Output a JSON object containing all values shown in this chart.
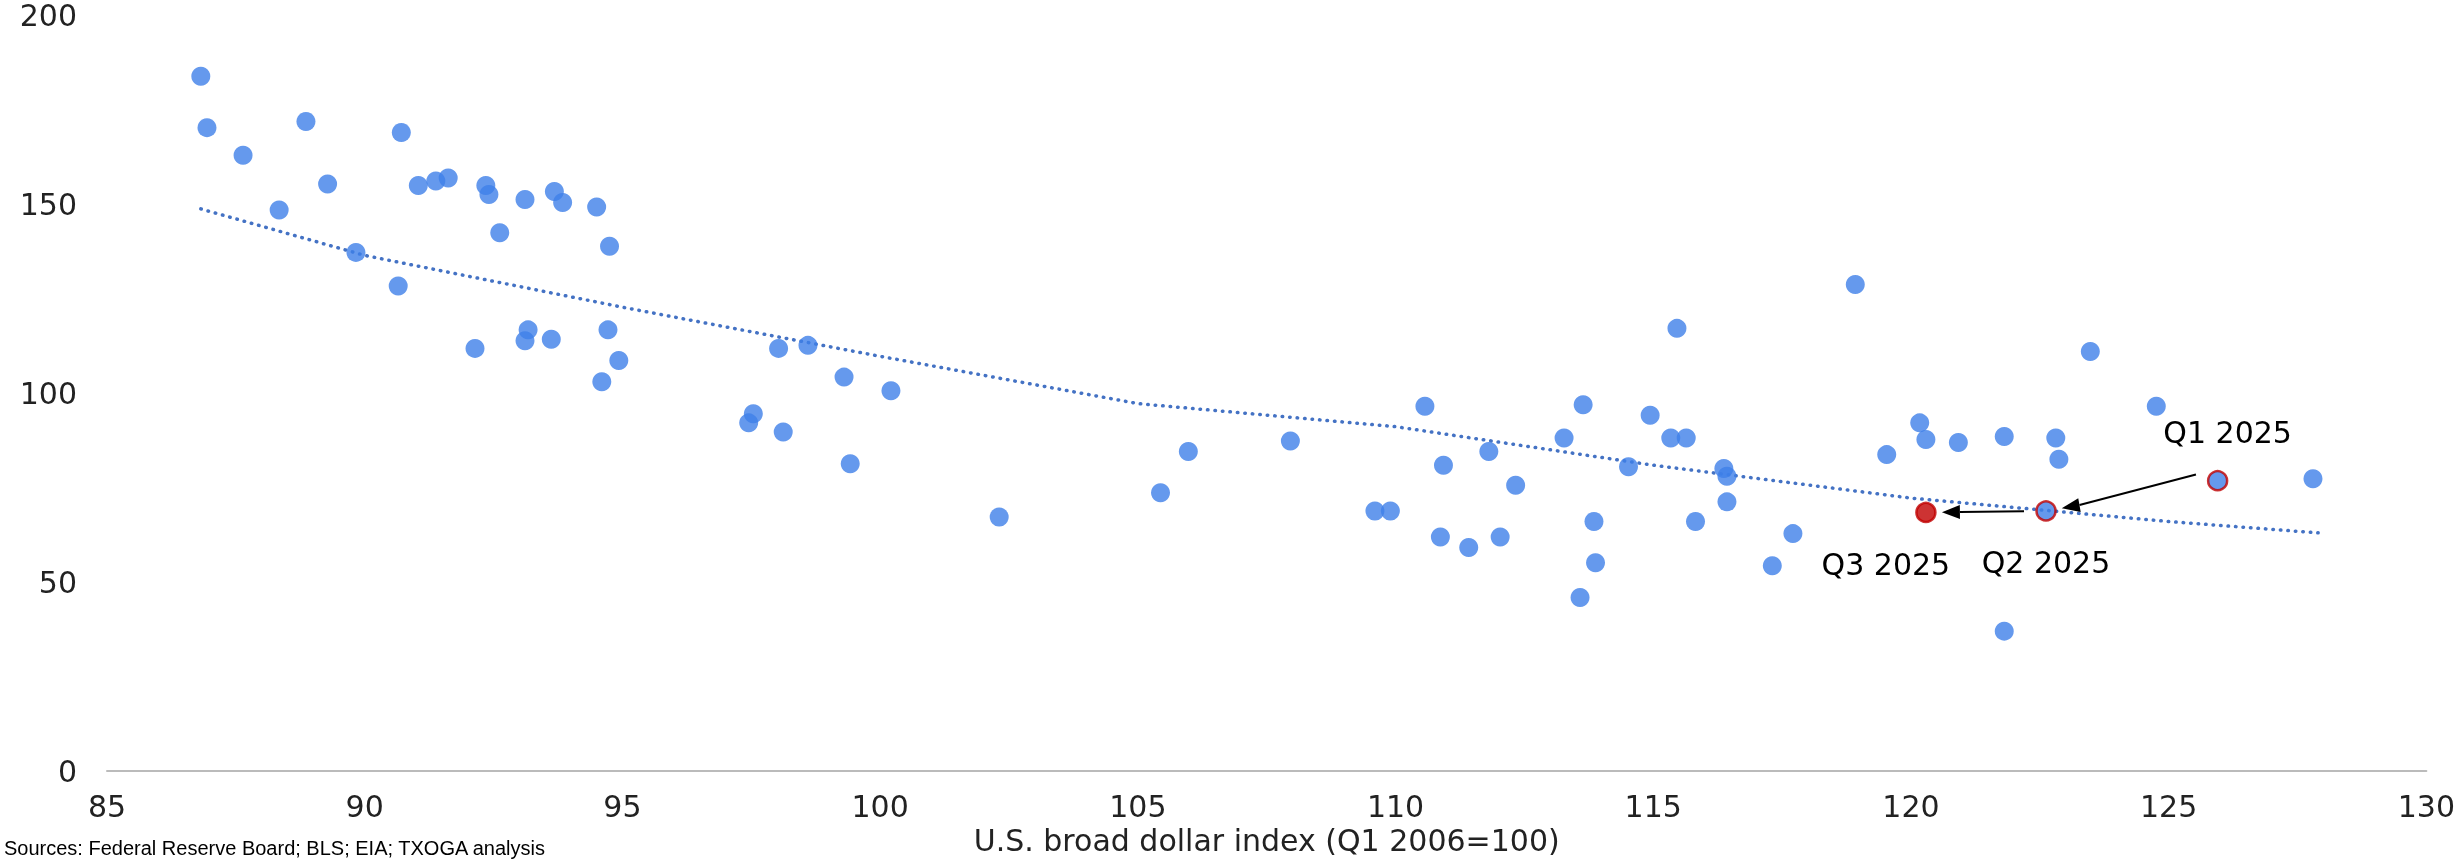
{
  "chart_data": {
    "type": "scatter",
    "xlabel": "U.S. broad dollar index (Q1 2006=100)",
    "xlim": [
      85,
      130
    ],
    "xticks": [
      85,
      90,
      95,
      100,
      105,
      110,
      115,
      120,
      125,
      130
    ],
    "ylim": [
      0,
      200
    ],
    "yticks": [
      0,
      50,
      100,
      150,
      200
    ],
    "grid": false,
    "marker": "circle",
    "series": [
      {
        "color": "#3f7fe8",
        "x": [
          86.82,
          86.94,
          87.64,
          88.34,
          88.86,
          89.28,
          89.83,
          90.65,
          90.71,
          91.04,
          91.38,
          91.62,
          92.35,
          92.41,
          92.62,
          92.14,
          93.11,
          93.11,
          93.17,
          93.62,
          93.68,
          93.84,
          94.5,
          94.75,
          94.72,
          94.6,
          94.93,
          97.45,
          97.54,
          98.03,
          98.12,
          98.6,
          99.3,
          99.42,
          100.21,
          102.31,
          105.44,
          105.98,
          107.96,
          109.6,
          109.9,
          110.57,
          110.87,
          110.93,
          111.42,
          111.81,
          112.03,
          112.33,
          113.27,
          113.58,
          113.64,
          113.85,
          113.88,
          114.52,
          114.94,
          115.34,
          115.46,
          115.64,
          115.82,
          116.37,
          116.43,
          116.43,
          117.31,
          117.71,
          118.92,
          119.53,
          120.17,
          120.29,
          120.92,
          121.81,
          121.81,
          122.81,
          122.87,
          123.48,
          124.76,
          127.8
        ],
        "values": [
          183.8,
          170.2,
          162.9,
          148.4,
          171.8,
          155.3,
          137.2,
          128.3,
          168.9,
          154.9,
          156.1,
          156.9,
          154.9,
          152.5,
          142.4,
          111.8,
          151.2,
          113.8,
          116.7,
          114.2,
          153.3,
          150.4,
          149.2,
          138.8,
          116.7,
          103,
          108.6,
          92.1,
          94.5,
          111.8,
          89.7,
          112.6,
          104.2,
          81.3,
          100.6,
          67.2,
          73.6,
          84.5,
          87.3,
          68.8,
          68.8,
          96.5,
          61.9,
          80.9,
          59.1,
          84.5,
          61.9,
          75.6,
          88.1,
          45.9,
          96.9,
          66,
          55.1,
          80.5,
          94.1,
          88.1,
          117.1,
          88.1,
          66,
          80,
          78,
          71.2,
          54.3,
          62.8,
          128.7,
          83.7,
          92.1,
          87.7,
          86.9,
          88.5,
          37,
          88.1,
          82.5,
          111,
          96.5,
          77.3
        ]
      },
      {
        "x": [
          125.95,
          122.62,
          120.29
        ],
        "values": [
          76.8,
          68.8,
          68.4
        ],
        "colors": [
          "#3f7fe8",
          "#3f7fe8",
          "#c00000"
        ]
      },
      {
        "type": "line",
        "color": "#4472c4",
        "line_style": "dotted",
        "marker": "none",
        "x": [
          86.82,
          90,
          95,
          100,
          105,
          110,
          115,
          120,
          125,
          127.9
        ],
        "values": [
          148.7,
          136.4,
          122.7,
          109.7,
          97.2,
          91.1,
          80.9,
          72.2,
          66,
          63
        ]
      }
    ],
    "annotations": [
      {
        "text": "Q1 2025",
        "x": 125.95,
        "y": 76.8
      },
      {
        "text": "Q2 2025",
        "x": 122.62,
        "y": 68.8
      },
      {
        "text": "Q3 2025",
        "x": 120.29,
        "y": 68.4
      },
      "Sources: Federal Reserve Board; BLS; EIA; TXOGA analysis"
    ]
  }
}
